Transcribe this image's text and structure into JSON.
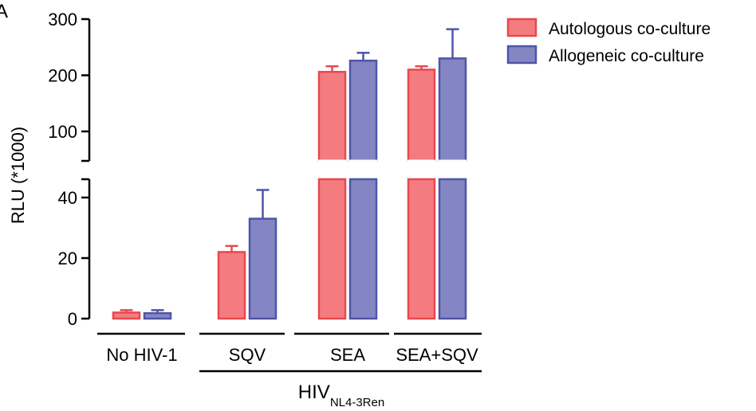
{
  "chart_data": {
    "type": "bar",
    "panel_letter": "A",
    "ylabel": "RLU (*1000)",
    "categories": [
      "No HIV-1",
      "SQV",
      "SEA",
      "SEA+SQV"
    ],
    "group_label": {
      "main": "HIV",
      "subscript": "NL4-3Ren",
      "spans_categories": [
        "SQV",
        "SEA",
        "SEA+SQV"
      ]
    },
    "y_axis": {
      "broken": true,
      "lower_segment": {
        "range": [
          0,
          45
        ],
        "ticks": [
          0,
          20,
          40
        ]
      },
      "upper_segment": {
        "range": [
          45,
          300
        ],
        "ticks": [
          100,
          200,
          300
        ]
      }
    },
    "series": [
      {
        "name": "Autologous co-culture",
        "fill": "#f47c80",
        "stroke": "#e8484e",
        "values": [
          2,
          22,
          206,
          210
        ],
        "error": [
          0.8,
          2,
          10,
          6
        ]
      },
      {
        "name": "Allogeneic co-culture",
        "fill": "#8386c2",
        "stroke": "#4f55a8",
        "values": [
          1.8,
          33,
          226,
          230
        ],
        "error": [
          1,
          9.5,
          14,
          52
        ]
      }
    ],
    "legend_position": "top-right"
  }
}
